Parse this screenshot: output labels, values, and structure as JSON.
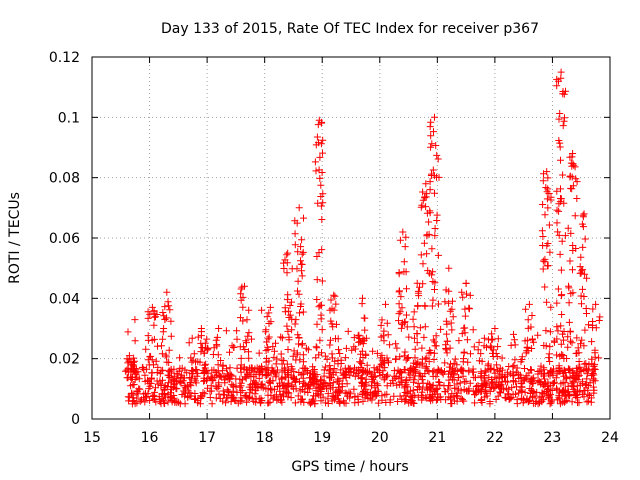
{
  "chart_data": {
    "type": "scatter",
    "title": "Day 133 of 2015, Rate Of TEC Index for receiver p367",
    "xlabel": "GPS time / hours",
    "ylabel": "ROTI / TECUs",
    "xlim": [
      15,
      24
    ],
    "ylim": [
      0,
      0.12
    ],
    "xticks": [
      "15",
      "16",
      "17",
      "18",
      "19",
      "20",
      "21",
      "22",
      "23",
      "24"
    ],
    "yticks": [
      "0",
      "0.02",
      "0.04",
      "0.06",
      "0.08",
      "0.1",
      "0.12"
    ],
    "xtick_values": [
      15,
      16,
      17,
      18,
      19,
      20,
      21,
      22,
      23,
      24
    ],
    "ytick_values": [
      0,
      0.02,
      0.04,
      0.06,
      0.08,
      0.1,
      0.12
    ],
    "grid": true,
    "marker": "+",
    "series": [
      {
        "name": "ROTI",
        "color": "#ff0000",
        "x_range": [
          15.6,
          23.75
        ],
        "baseline_typical": 0.011,
        "peaks": [
          {
            "x": 15.65,
            "y": 0.021
          },
          {
            "x": 16.05,
            "y": 0.037
          },
          {
            "x": 16.3,
            "y": 0.042
          },
          {
            "x": 16.9,
            "y": 0.03
          },
          {
            "x": 17.2,
            "y": 0.03
          },
          {
            "x": 17.65,
            "y": 0.044
          },
          {
            "x": 18.1,
            "y": 0.037
          },
          {
            "x": 18.4,
            "y": 0.055
          },
          {
            "x": 18.6,
            "y": 0.07
          },
          {
            "x": 18.95,
            "y": 0.099
          },
          {
            "x": 19.2,
            "y": 0.041
          },
          {
            "x": 19.7,
            "y": 0.04
          },
          {
            "x": 20.1,
            "y": 0.038
          },
          {
            "x": 20.4,
            "y": 0.062
          },
          {
            "x": 20.65,
            "y": 0.045
          },
          {
            "x": 20.8,
            "y": 0.078
          },
          {
            "x": 20.95,
            "y": 0.1
          },
          {
            "x": 21.2,
            "y": 0.05
          },
          {
            "x": 21.5,
            "y": 0.045
          },
          {
            "x": 22.0,
            "y": 0.03
          },
          {
            "x": 22.6,
            "y": 0.038
          },
          {
            "x": 22.9,
            "y": 0.082
          },
          {
            "x": 23.15,
            "y": 0.115
          },
          {
            "x": 23.35,
            "y": 0.088
          },
          {
            "x": 23.55,
            "y": 0.068
          },
          {
            "x": 23.75,
            "y": 0.038
          }
        ]
      }
    ]
  }
}
